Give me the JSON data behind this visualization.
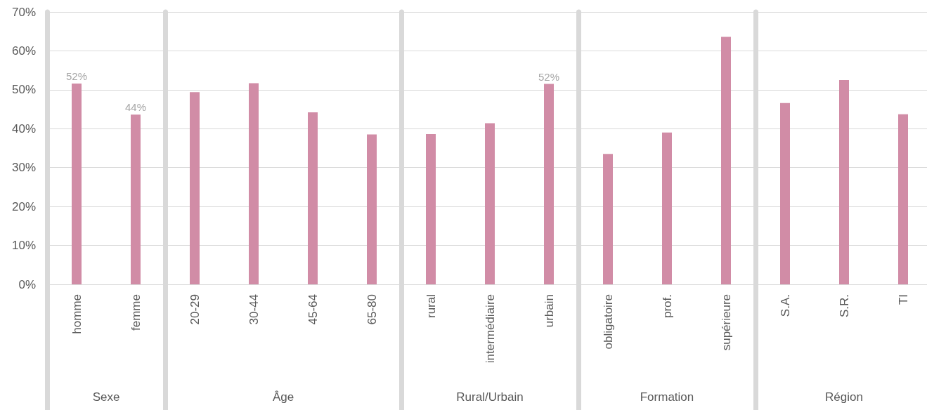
{
  "chart_data": [
    {
      "type": "bar",
      "xlabel": "Sexe",
      "categories": [
        "homme",
        "femme"
      ],
      "values": [
        51.6,
        43.6
      ],
      "value_labels": [
        "52%",
        "44%"
      ],
      "color": "#d18ca6",
      "ylim": [
        0,
        70
      ],
      "yticks": [
        {
          "value": 0,
          "label": "0%"
        },
        {
          "value": 10,
          "label": "10%"
        },
        {
          "value": 20,
          "label": "20%"
        },
        {
          "value": 30,
          "label": "30%"
        },
        {
          "value": 40,
          "label": "40%"
        },
        {
          "value": 50,
          "label": "50%"
        },
        {
          "value": 60,
          "label": "60%"
        },
        {
          "value": 70,
          "label": "70%"
        }
      ],
      "grid": "y"
    },
    {
      "type": "bar",
      "xlabel": "Âge",
      "categories": [
        "20-29",
        "30-44",
        "45-64",
        "65-80"
      ],
      "values": [
        49.4,
        51.7,
        44.2,
        38.5
      ],
      "color": "#d18ca6",
      "ylim": [
        0,
        70
      ],
      "yticks": [
        0,
        10,
        20,
        30,
        40,
        50,
        60,
        70
      ],
      "grid": "y",
      "tick_labels": "x"
    },
    {
      "type": "bar",
      "xlabel": "Rural/Urbain",
      "categories": [
        "rural",
        "intermédiaire",
        "urbain"
      ],
      "values": [
        38.6,
        41.4,
        51.5
      ],
      "value_labels": [
        null,
        null,
        "52%"
      ],
      "color": "#d18ca6",
      "ylim": [
        0,
        70
      ],
      "yticks": [
        0,
        10,
        20,
        30,
        40,
        50,
        60,
        70
      ],
      "grid": "y",
      "tick_labels": "x"
    },
    {
      "type": "bar",
      "xlabel": "Formation",
      "categories": [
        "obligatoire",
        "prof.",
        "supérieure"
      ],
      "values": [
        33.5,
        39.0,
        63.6
      ],
      "color": "#d18ca6",
      "ylim": [
        0,
        70
      ],
      "yticks": [
        0,
        10,
        20,
        30,
        40,
        50,
        60,
        70
      ],
      "grid": "y",
      "tick_labels": "x"
    },
    {
      "type": "bar",
      "xlabel": "Région",
      "categories": [
        "S.A.",
        "S.R.",
        "TI"
      ],
      "values": [
        46.6,
        52.5,
        43.7
      ],
      "color": "#d18ca6",
      "ylim": [
        0,
        70
      ],
      "yticks": [
        0,
        10,
        20,
        30,
        40,
        50,
        60,
        70
      ],
      "grid": "y",
      "tick_labels": "x"
    }
  ]
}
